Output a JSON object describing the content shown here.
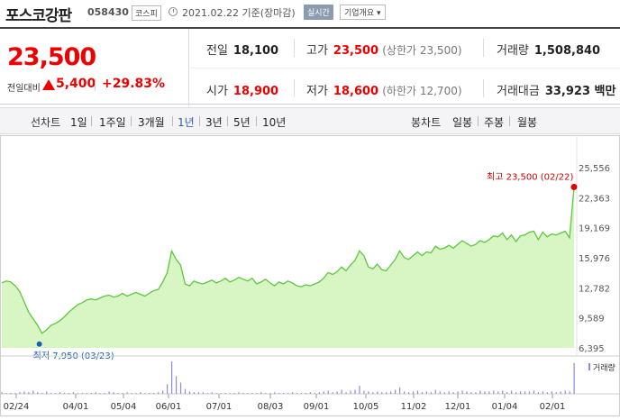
{
  "header": {
    "name": "포스코강판",
    "code": "058430",
    "market": "코스피",
    "date": "2021.02.22  기준(장마감)",
    "realtime": "실시간",
    "company": "기업개요 ▾"
  },
  "price": {
    "current": "23,500",
    "change_label": "전일대비",
    "change": "5,400",
    "change_pct": "+29.83%"
  },
  "stats": {
    "prev_label": "전일",
    "prev": "18,100",
    "high_label": "고가",
    "high": "23,500",
    "high_note": "(상한가 23,500)",
    "volume_label": "거래량",
    "volume": "1,508,840",
    "open_label": "시가",
    "open": "18,900",
    "low_label": "저가",
    "low": "18,600",
    "low_note": "(하한가 12,700)",
    "value_label": "거래대금",
    "value": "33,923 백만"
  },
  "toolbar": {
    "line_label": "선차트",
    "line_items": [
      "1일",
      "1주일",
      "3개월",
      "1년",
      "3년",
      "5년",
      "10년"
    ],
    "selected": "1년",
    "candle_label": "봉차트",
    "candle_items": [
      "일봉",
      "주봉",
      "월봉"
    ]
  },
  "colors": {
    "up": "#e00000",
    "down": "#1a5fb4",
    "area_fill": "#d8f5c4",
    "area_line": "#5cc83c",
    "volume_bar": "#8c8cd8"
  },
  "chart_data": {
    "type": "area",
    "x_ticks": [
      "02/24",
      "04/01",
      "05/04",
      "06/01",
      "07/01",
      "08/03",
      "09/01",
      "10/05",
      "11/02",
      "12/01",
      "01/04",
      "02/01"
    ],
    "y_ticks": [
      25556,
      22363,
      19169,
      15976,
      12782,
      9589,
      6395
    ],
    "ylim": [
      6395,
      25556
    ],
    "high_annotation": "최고 23,500 (02/22)",
    "low_annotation": "최저 7,950 (03/23)",
    "volume_label": "거래량",
    "prices": [
      13300,
      13500,
      13400,
      13000,
      12400,
      11300,
      10200,
      9500,
      8800,
      7950,
      8300,
      8800,
      9000,
      9300,
      9700,
      10200,
      10600,
      11000,
      11200,
      11500,
      11600,
      11500,
      11700,
      11900,
      12000,
      11800,
      11900,
      12200,
      11900,
      12100,
      12300,
      12100,
      11900,
      12200,
      12500,
      12600,
      13400,
      14400,
      16700,
      15800,
      15200,
      13200,
      13000,
      13500,
      13300,
      13200,
      13400,
      13600,
      13300,
      13500,
      13800,
      13400,
      13600,
      13900,
      13700,
      13500,
      13800,
      13200,
      13400,
      13700,
      13300,
      13000,
      13400,
      13200,
      13500,
      13300,
      13000,
      12900,
      13100,
      13000,
      13200,
      13400,
      13800,
      14400,
      14200,
      14500,
      15000,
      14600,
      15200,
      15700,
      16700,
      16200,
      15000,
      14800,
      15300,
      14700,
      14600,
      15200,
      15800,
      16700,
      16000,
      15800,
      16200,
      16600,
      16200,
      16600,
      16500,
      17200,
      16900,
      17000,
      17300,
      17000,
      17400,
      17800,
      17500,
      17200,
      17400,
      17800,
      17600,
      17900,
      18300,
      18200,
      18600,
      17900,
      18400,
      17700,
      18300,
      18400,
      18700,
      18800,
      17900,
      18700,
      18200,
      18500,
      18400,
      18600,
      18800,
      18100,
      23500
    ],
    "volumes": [
      2,
      1,
      1,
      1,
      2,
      3,
      2,
      4,
      2,
      1,
      3,
      1,
      1,
      2,
      1,
      1,
      2,
      1,
      1,
      1,
      1,
      2,
      1,
      1,
      3,
      2,
      1,
      1,
      2,
      1,
      1,
      2,
      1,
      1,
      1,
      2,
      4,
      12,
      40,
      22,
      14,
      6,
      3,
      2,
      2,
      2,
      1,
      2,
      1,
      1,
      1,
      1,
      1,
      2,
      1,
      1,
      1,
      1,
      2,
      1,
      1,
      2,
      1,
      1,
      1,
      2,
      1,
      1,
      1,
      2,
      1,
      2,
      3,
      4,
      2,
      3,
      5,
      2,
      4,
      5,
      10,
      4,
      3,
      2,
      3,
      2,
      2,
      3,
      5,
      8,
      3,
      2,
      3,
      4,
      2,
      3,
      2,
      5,
      3,
      2,
      3,
      2,
      3,
      4,
      3,
      2,
      2,
      4,
      3,
      3,
      4,
      3,
      4,
      2,
      4,
      2,
      3,
      3,
      3,
      4,
      2,
      3,
      2,
      3,
      2,
      3,
      4,
      3,
      38
    ]
  }
}
